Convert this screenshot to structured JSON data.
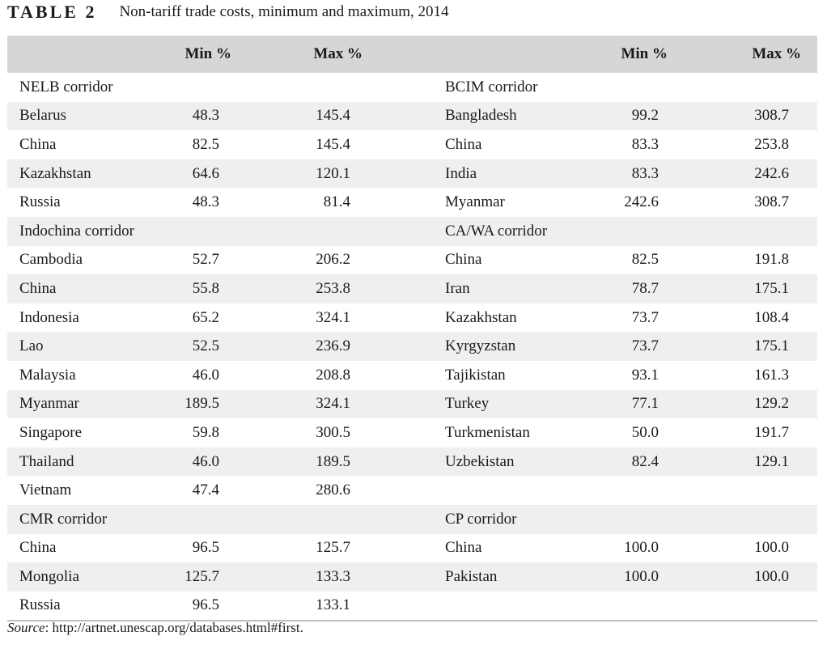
{
  "caption": {
    "label": "TABLE 2",
    "title": "Non-tariff trade costs, minimum and maximum, 2014"
  },
  "headers": {
    "min": "Min %",
    "max": "Max %"
  },
  "rows": [
    {
      "shade": false,
      "l": [
        "NELB corridor",
        "",
        ""
      ],
      "r": [
        "BCIM corridor",
        "",
        ""
      ]
    },
    {
      "shade": true,
      "l": [
        "Belarus",
        "48.3",
        "145.4"
      ],
      "r": [
        "Bangladesh",
        "99.2",
        "308.7"
      ]
    },
    {
      "shade": false,
      "l": [
        "China",
        "82.5",
        "145.4"
      ],
      "r": [
        "China",
        "83.3",
        "253.8"
      ]
    },
    {
      "shade": true,
      "l": [
        "Kazakhstan",
        "64.6",
        "120.1"
      ],
      "r": [
        "India",
        "83.3",
        "242.6"
      ]
    },
    {
      "shade": false,
      "l": [
        "Russia",
        "48.3",
        "81.4"
      ],
      "r": [
        "Myanmar",
        "242.6",
        "308.7"
      ]
    },
    {
      "shade": true,
      "l": [
        "Indochina corridor",
        "",
        ""
      ],
      "r": [
        "CA/WA corridor",
        "",
        ""
      ]
    },
    {
      "shade": false,
      "l": [
        "Cambodia",
        "52.7",
        "206.2"
      ],
      "r": [
        "China",
        "82.5",
        "191.8"
      ]
    },
    {
      "shade": true,
      "l": [
        "China",
        "55.8",
        "253.8"
      ],
      "r": [
        "Iran",
        "78.7",
        "175.1"
      ]
    },
    {
      "shade": false,
      "l": [
        "Indonesia",
        "65.2",
        "324.1"
      ],
      "r": [
        "Kazakhstan",
        "73.7",
        "108.4"
      ]
    },
    {
      "shade": true,
      "l": [
        "Lao",
        "52.5",
        "236.9"
      ],
      "r": [
        "Kyrgyzstan",
        "73.7",
        "175.1"
      ]
    },
    {
      "shade": false,
      "l": [
        "Malaysia",
        "46.0",
        "208.8"
      ],
      "r": [
        "Tajikistan",
        "93.1",
        "161.3"
      ]
    },
    {
      "shade": true,
      "l": [
        "Myanmar",
        "189.5",
        "324.1"
      ],
      "r": [
        "Turkey",
        "77.1",
        "129.2"
      ]
    },
    {
      "shade": false,
      "l": [
        "Singapore",
        "59.8",
        "300.5"
      ],
      "r": [
        "Turkmenistan",
        "50.0",
        "191.7"
      ]
    },
    {
      "shade": true,
      "l": [
        "Thailand",
        "46.0",
        "189.5"
      ],
      "r": [
        "Uzbekistan",
        "82.4",
        "129.1"
      ]
    },
    {
      "shade": false,
      "l": [
        "Vietnam",
        "47.4",
        "280.6"
      ],
      "r": [
        "",
        "",
        ""
      ]
    },
    {
      "shade": true,
      "l": [
        "CMR corridor",
        "",
        ""
      ],
      "r": [
        "CP corridor",
        "",
        ""
      ]
    },
    {
      "shade": false,
      "l": [
        "China",
        "96.5",
        "125.7"
      ],
      "r": [
        "China",
        "100.0",
        "100.0"
      ]
    },
    {
      "shade": true,
      "l": [
        "Mongolia",
        "125.7",
        "133.3"
      ],
      "r": [
        "Pakistan",
        "100.0",
        "100.0"
      ]
    },
    {
      "shade": false,
      "l": [
        "Russia",
        "96.5",
        "133.1"
      ],
      "r": [
        "",
        "",
        ""
      ]
    }
  ],
  "source": {
    "label": "Source",
    "text": ": http://artnet.unescap.org/databases.html#first."
  }
}
